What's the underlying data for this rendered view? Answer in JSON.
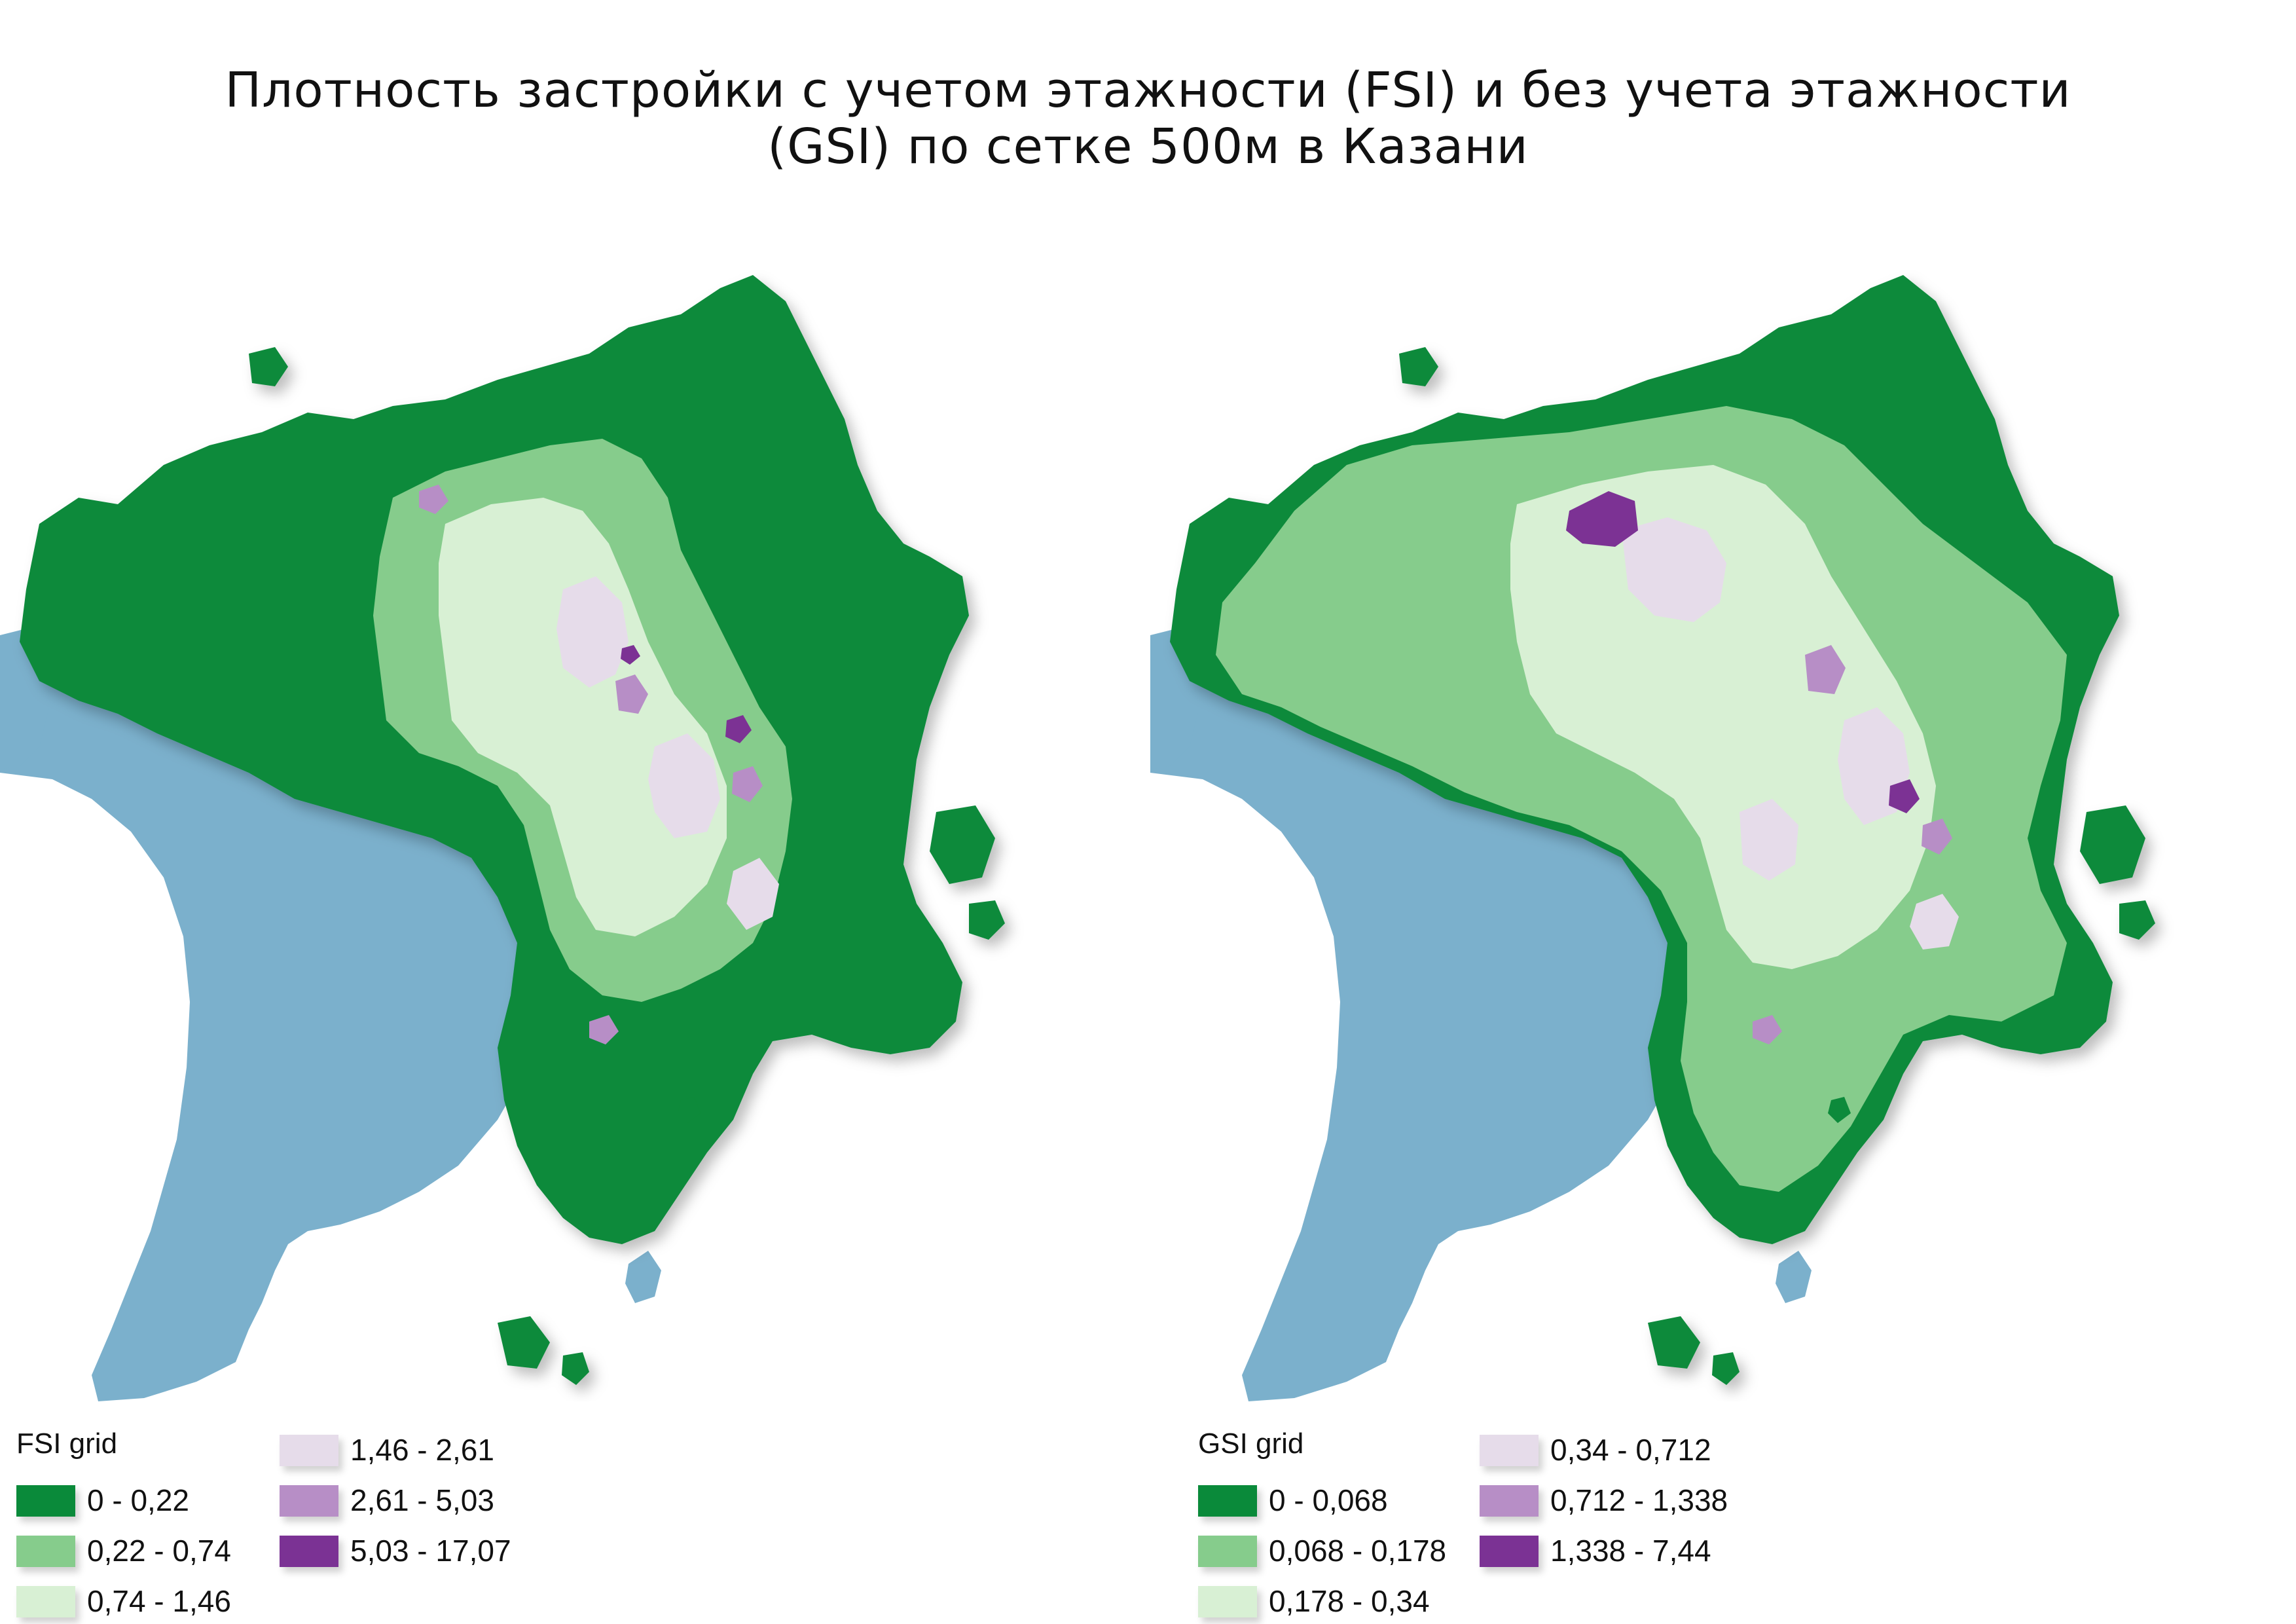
{
  "title": {
    "line1": "Плотность застройки с учетом этажности (FSI) и без учета этажности",
    "line2": "(GSI) по сетке 500м в Казани"
  },
  "colors": {
    "water": "#7bb0cc",
    "class1": "#0a8a3a",
    "class2": "#86cc8c",
    "class3": "#d8f0d4",
    "class4": "#e6dcea",
    "class5": "#b78ec6",
    "class6": "#7b3294"
  },
  "maps": [
    {
      "id": "fsi",
      "legend_title": "FSI grid",
      "classes": [
        {
          "label": "0 - 0,22",
          "color": "#0a8a3a"
        },
        {
          "label": "0,22 - 0,74",
          "color": "#86cc8c"
        },
        {
          "label": "0,74 - 1,46",
          "color": "#d8f0d4"
        },
        {
          "label": "1,46 - 2,61",
          "color": "#e6dcea"
        },
        {
          "label": "2,61 - 5,03",
          "color": "#b78ec6"
        },
        {
          "label": "5,03 - 17,07",
          "color": "#7b3294"
        }
      ]
    },
    {
      "id": "gsi",
      "legend_title": "GSI grid",
      "classes": [
        {
          "label": "0 - 0,068",
          "color": "#0a8a3a"
        },
        {
          "label": "0,068 - 0,178",
          "color": "#86cc8c"
        },
        {
          "label": "0,178 - 0,34",
          "color": "#d8f0d4"
        },
        {
          "label": "0,34 - 0,712",
          "color": "#e6dcea"
        },
        {
          "label": "0,712 - 1,338",
          "color": "#b78ec6"
        },
        {
          "label": "1,338 - 7,44",
          "color": "#7b3294"
        }
      ]
    }
  ]
}
